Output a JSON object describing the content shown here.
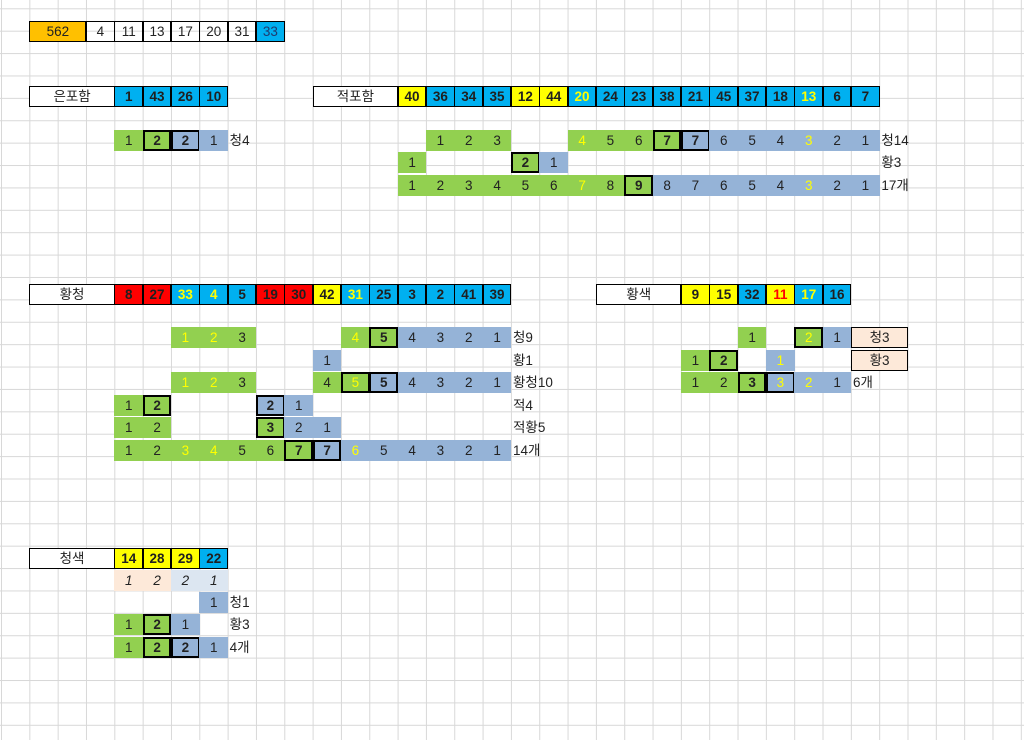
{
  "colors": {
    "green": "#92d050",
    "blue": "#95b3d7",
    "yellow": "#ffff00",
    "cyan": "#00b0f0",
    "red": "#ff0000",
    "orange": "#ffc000",
    "peach": "#fde9d9",
    "light_blue": "#dce6f1",
    "text": "#222222",
    "yellow_text": "#ffff00",
    "red_text": "#ff0000",
    "grid": "#d8d8d8"
  },
  "headers": {
    "top_row": [
      "562",
      "4",
      "11",
      "13",
      "17",
      "20",
      "31",
      "33"
    ],
    "eunpoham": {
      "label": "은포함",
      "numbers": [
        "1",
        "43",
        "26",
        "10"
      ]
    },
    "jeokpoham": {
      "label": "적포함",
      "numbers": [
        "40",
        "36",
        "34",
        "35",
        "12",
        "44",
        "20",
        "24",
        "23",
        "38",
        "21",
        "45",
        "37",
        "18",
        "13",
        "6",
        "7"
      ]
    },
    "hwangcheong": {
      "label": "황청",
      "numbers": [
        "8",
        "27",
        "33",
        "4",
        "5",
        "19",
        "30",
        "42",
        "31",
        "25",
        "3",
        "2",
        "41",
        "39"
      ]
    },
    "hwangsaek": {
      "label": "황색",
      "numbers": [
        "9",
        "15",
        "32",
        "11",
        "17",
        "16"
      ]
    },
    "cheongsaek": {
      "label": "청색",
      "numbers": [
        "14",
        "28",
        "29",
        "22"
      ]
    }
  },
  "row_labels": {
    "eun_1": "청4",
    "jeok_1": "청14",
    "jeok_2": "황3",
    "jeok_3": "17개",
    "hc_1": "청9",
    "hc_2": "황1",
    "hc_3": "황청10",
    "hc_4": "적4",
    "hc_5": "적황5",
    "hc_6": "14개",
    "hs_1": "청3",
    "hs_2": "황3",
    "hs_3": "6개",
    "cs_2": "청1",
    "cs_3": "황3",
    "cs_4": "4개"
  },
  "patterns": {
    "eun_1": [
      "1",
      "2",
      "2",
      "1"
    ],
    "jeok_1": [
      "1",
      "2",
      "3",
      "4",
      "5",
      "6",
      "7",
      "7",
      "6",
      "5",
      "4",
      "3",
      "2",
      "1"
    ],
    "jeok_2": [
      "1",
      "2",
      "1"
    ],
    "jeok_3": [
      "1",
      "2",
      "3",
      "4",
      "5",
      "6",
      "7",
      "8",
      "9",
      "8",
      "7",
      "6",
      "5",
      "4",
      "3",
      "2",
      "1"
    ],
    "hc_1": [
      "1",
      "2",
      "3",
      "4",
      "5",
      "4",
      "3",
      "2",
      "1"
    ],
    "hc_2": [
      "1"
    ],
    "hc_3": [
      "1",
      "2",
      "3",
      "4",
      "5",
      "5",
      "4",
      "3",
      "2",
      "1"
    ],
    "hc_4": [
      "1",
      "2",
      "2",
      "1"
    ],
    "hc_5": [
      "1",
      "2",
      "3",
      "2",
      "1"
    ],
    "hc_6": [
      "1",
      "2",
      "3",
      "4",
      "5",
      "6",
      "7",
      "7",
      "6",
      "5",
      "4",
      "3",
      "2",
      "1"
    ],
    "hs_1": [
      "1",
      "2",
      "1"
    ],
    "hs_2": [
      "1",
      "2",
      "1"
    ],
    "hs_3": [
      "1",
      "2",
      "3",
      "3",
      "2",
      "1"
    ],
    "cs_1": [
      "1",
      "2",
      "2",
      "1"
    ],
    "cs_2": [
      "1"
    ],
    "cs_3": [
      "1",
      "2",
      "1"
    ],
    "cs_4": [
      "1",
      "2",
      "2",
      "1"
    ]
  }
}
